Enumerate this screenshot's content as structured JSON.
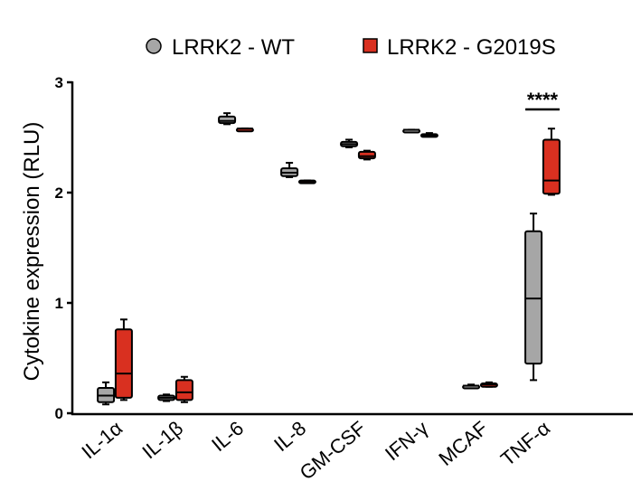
{
  "chart_data": {
    "type": "boxplot",
    "ylabel": "Cytokine expression (RLU)",
    "ylim": [
      0,
      3
    ],
    "yticks": [
      "0",
      "1",
      "2",
      "3"
    ],
    "categories": [
      "IL-1α",
      "IL-1β",
      "IL-6",
      "IL-8",
      "GM-CSF",
      "IFN-γ",
      "MCAF",
      "TNF-α"
    ],
    "legend_position": "top",
    "series": [
      {
        "name": "LRRK2 - WT",
        "color": "#a6a6a6",
        "marker": "circle",
        "boxes": [
          {
            "min": 0.08,
            "q1": 0.1,
            "median": 0.16,
            "q3": 0.23,
            "max": 0.28
          },
          {
            "min": 0.11,
            "q1": 0.12,
            "median": 0.14,
            "q3": 0.16,
            "max": 0.17
          },
          {
            "min": 2.62,
            "q1": 2.63,
            "median": 2.65,
            "q3": 2.69,
            "max": 2.72
          },
          {
            "min": 2.14,
            "q1": 2.15,
            "median": 2.18,
            "q3": 2.22,
            "max": 2.27
          },
          {
            "min": 2.41,
            "q1": 2.42,
            "median": 2.44,
            "q3": 2.46,
            "max": 2.48
          },
          {
            "min": 2.57,
            "q1": 2.57,
            "median": 2.57,
            "q3": 2.57,
            "max": 2.57
          },
          {
            "min": 0.24,
            "q1": 0.24,
            "median": 0.25,
            "q3": 0.25,
            "max": 0.26
          },
          {
            "min": 0.3,
            "q1": 0.45,
            "median": 1.04,
            "q3": 1.65,
            "max": 1.81
          }
        ]
      },
      {
        "name": "LRRK2 - G2019S",
        "color": "#d93020",
        "marker": "square",
        "boxes": [
          {
            "min": 0.12,
            "q1": 0.14,
            "median": 0.36,
            "q3": 0.76,
            "max": 0.85
          },
          {
            "min": 0.1,
            "q1": 0.12,
            "median": 0.19,
            "q3": 0.3,
            "max": 0.33
          },
          {
            "min": 2.58,
            "q1": 2.58,
            "median": 2.58,
            "q3": 2.58,
            "max": 2.58
          },
          {
            "min": 2.1,
            "q1": 2.1,
            "median": 2.1,
            "q3": 2.11,
            "max": 2.11
          },
          {
            "min": 2.3,
            "q1": 2.31,
            "median": 2.33,
            "q3": 2.37,
            "max": 2.38
          },
          {
            "min": 2.51,
            "q1": 2.51,
            "median": 2.52,
            "q3": 2.53,
            "max": 2.54
          },
          {
            "min": 0.24,
            "q1": 0.24,
            "median": 0.26,
            "q3": 0.27,
            "max": 0.28
          },
          {
            "min": 1.98,
            "q1": 1.99,
            "median": 2.11,
            "q3": 2.48,
            "max": 2.58
          }
        ]
      }
    ],
    "annotations": [
      {
        "text": "****",
        "category": "TNF-α"
      }
    ]
  }
}
